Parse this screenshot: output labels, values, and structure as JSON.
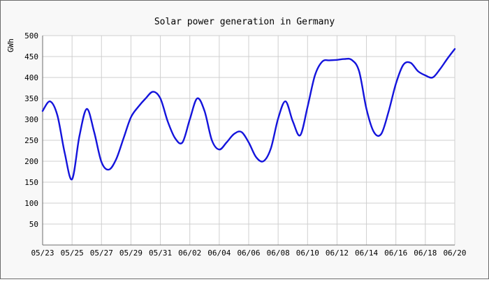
{
  "chart_data": {
    "type": "line",
    "title": "Solar power generation in Germany",
    "ylabel": "GWh",
    "xlabel": "",
    "ylim": [
      0,
      500
    ],
    "yticks": [
      50,
      100,
      150,
      200,
      250,
      300,
      350,
      400,
      450,
      500
    ],
    "xtick_labels": [
      "05/23",
      "05/25",
      "05/27",
      "05/29",
      "05/31",
      "06/02",
      "06/04",
      "06/06",
      "06/08",
      "06/10",
      "06/12",
      "06/14",
      "06/16",
      "06/18",
      "06/20"
    ],
    "grid": true,
    "colors": {
      "line": "#1414dc",
      "grid": "#cfcfcf",
      "axis": "#6b6b6b",
      "plot_bg": "#ffffff",
      "frame_bg": "#f8f8f8"
    },
    "series": [
      {
        "x": [
          "05/23",
          "05/23.5",
          "05/24",
          "05/24.5",
          "05/25",
          "05/25.5",
          "05/26",
          "05/26.5",
          "05/27",
          "05/27.5",
          "05/28",
          "05/28.5",
          "05/29",
          "05/29.5",
          "05/30",
          "05/30.5",
          "05/31",
          "05/31.5",
          "06/01",
          "06/01.5",
          "06/02",
          "06/02.5",
          "06/03",
          "06/03.5",
          "06/04",
          "06/04.5",
          "06/05",
          "06/05.5",
          "06/06",
          "06/06.5",
          "06/07",
          "06/07.5",
          "06/08",
          "06/08.5",
          "06/09",
          "06/09.5",
          "06/10",
          "06/10.5",
          "06/11",
          "06/11.5",
          "06/12",
          "06/12.5",
          "06/13",
          "06/13.5",
          "06/14",
          "06/14.5",
          "06/15",
          "06/15.5",
          "06/16",
          "06/16.5",
          "06/17",
          "06/17.5",
          "06/18",
          "06/18.5",
          "06/19",
          "06/19.5",
          "06/20"
        ],
        "values": [
          320,
          343,
          310,
          220,
          157,
          260,
          325,
          270,
          198,
          180,
          205,
          255,
          305,
          330,
          350,
          366,
          350,
          295,
          255,
          245,
          300,
          350,
          320,
          250,
          228,
          245,
          265,
          270,
          245,
          210,
          200,
          230,
          302,
          343,
          295,
          262,
          330,
          405,
          438,
          441,
          442,
          444,
          442,
          415,
          325,
          270,
          265,
          318,
          385,
          430,
          435,
          415,
          405,
          400,
          420,
          445,
          468
        ]
      }
    ]
  }
}
